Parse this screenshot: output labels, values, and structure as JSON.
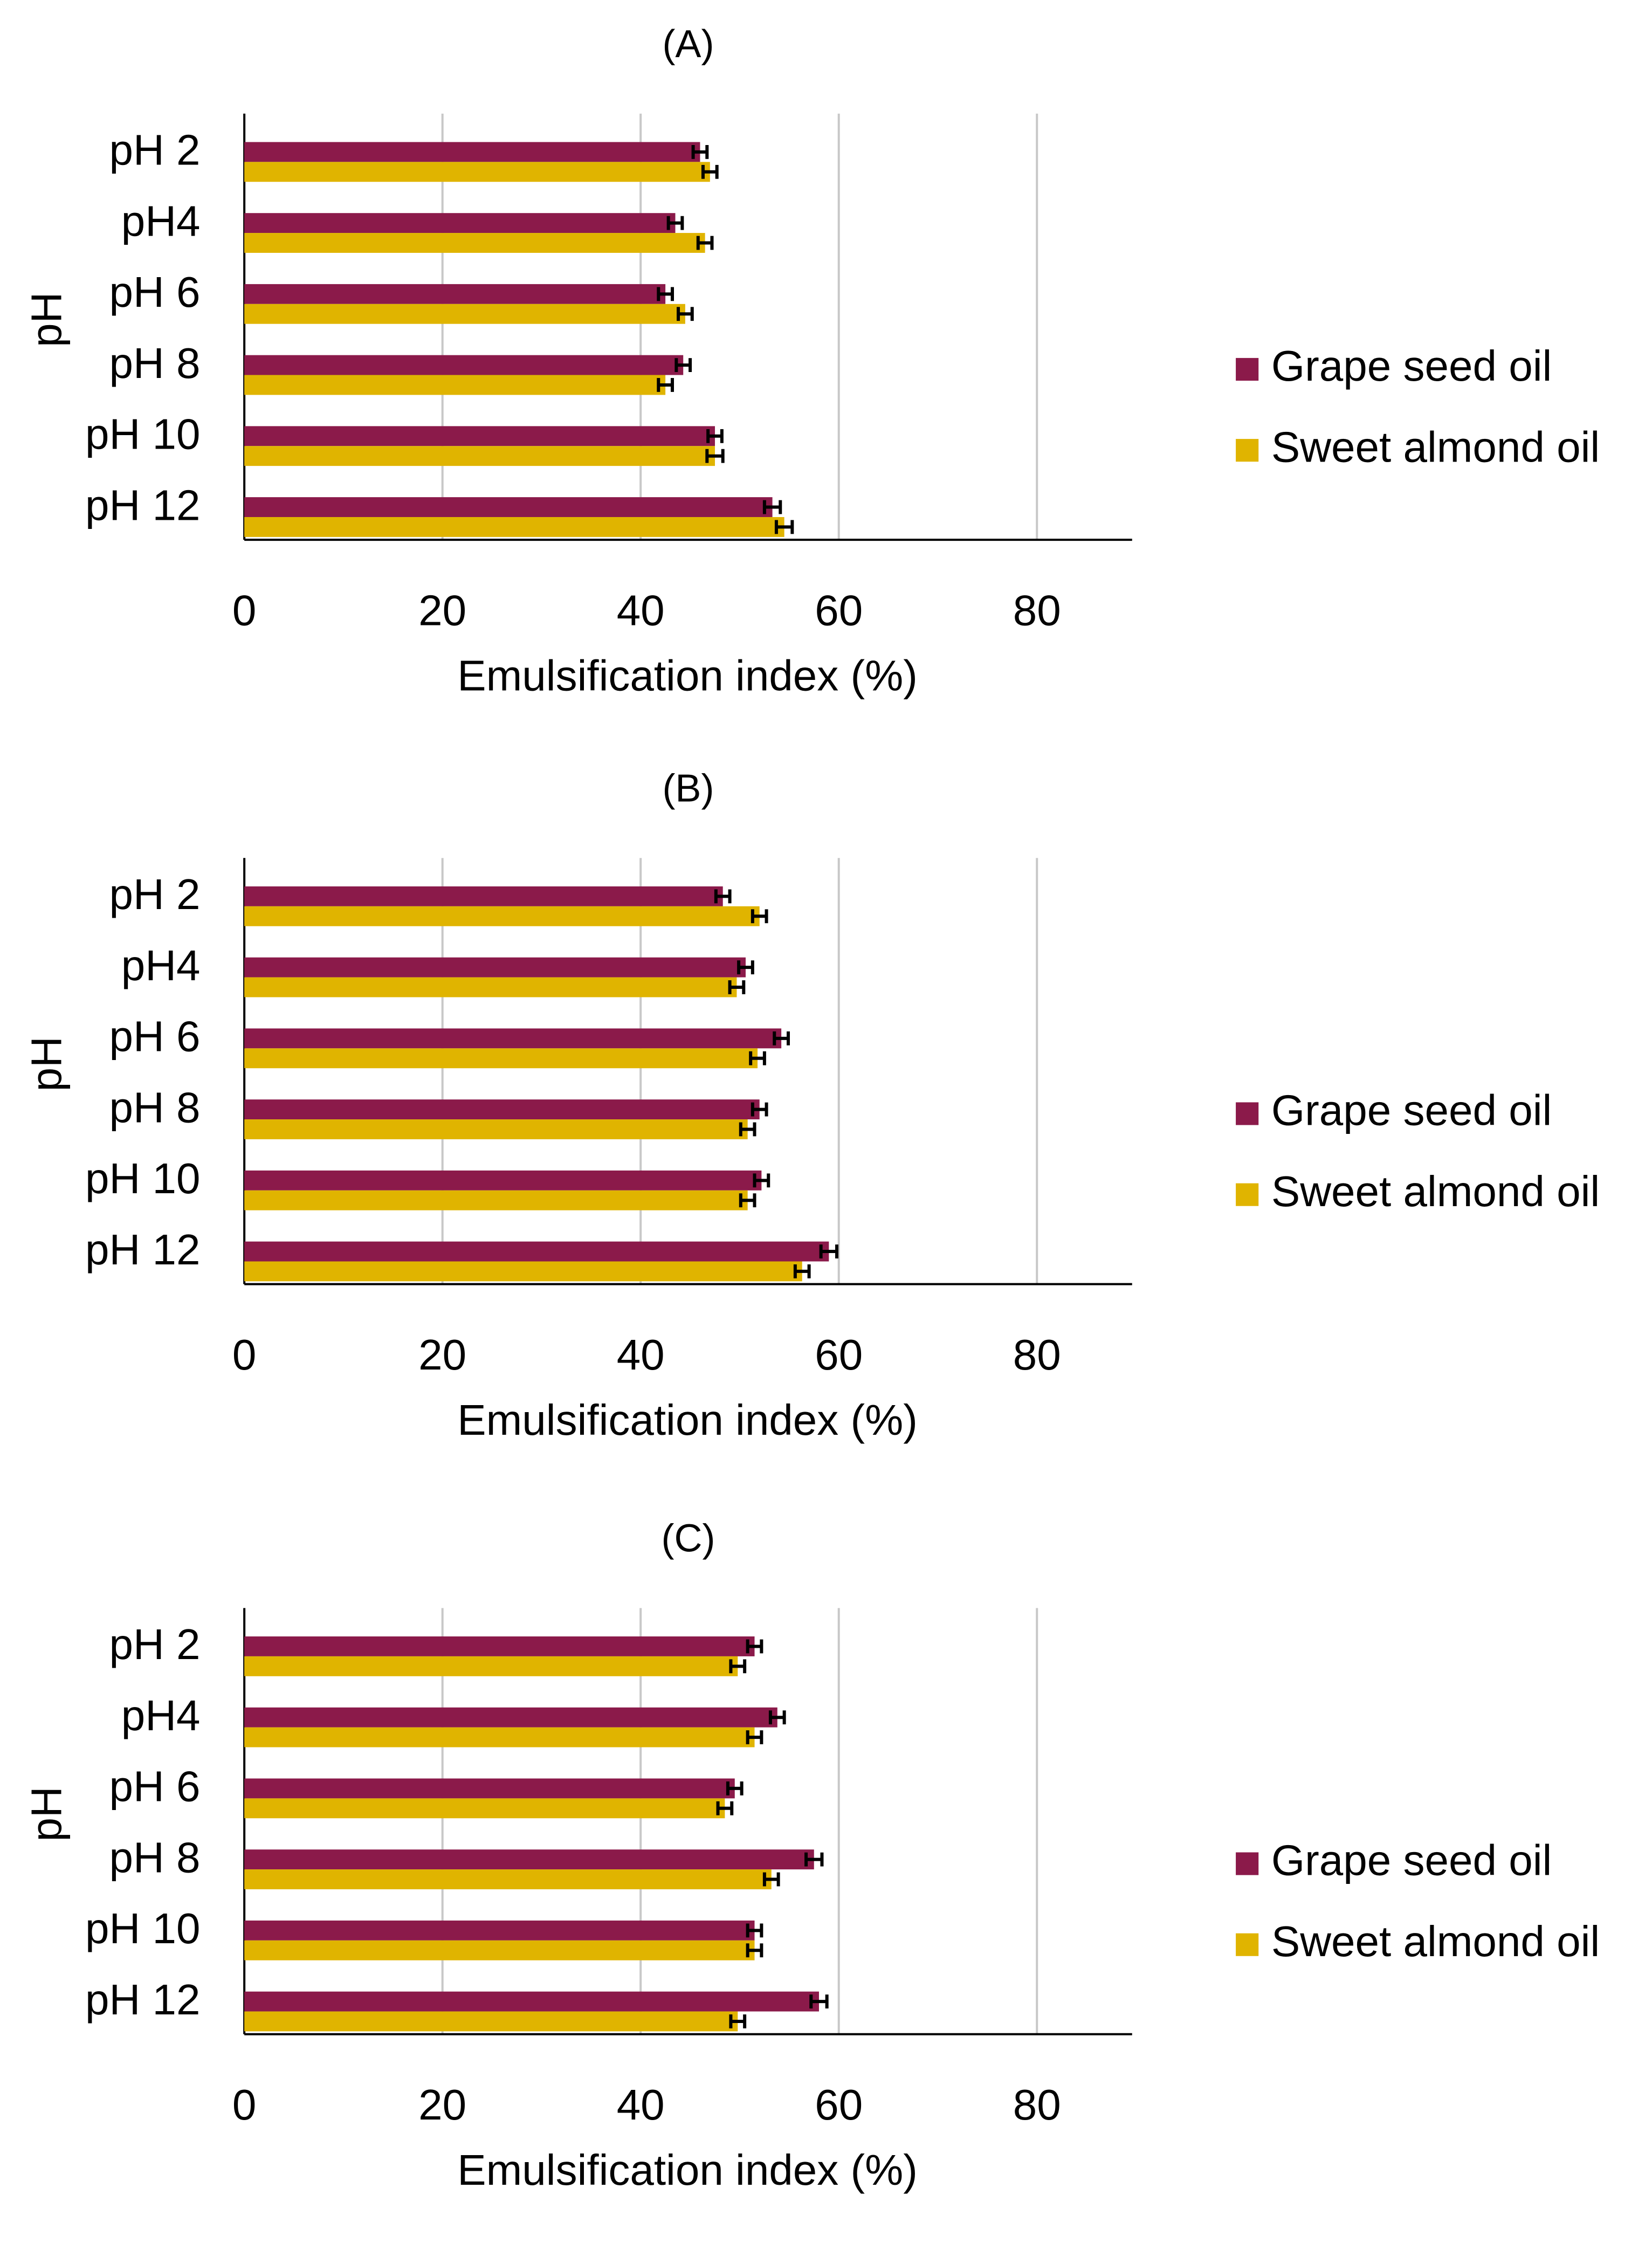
{
  "chart_data": [
    {
      "type": "bar",
      "orientation": "horizontal",
      "panel_label": "(A)",
      "title": "(A)",
      "xlabel": "Emulsification index (%)",
      "ylabel": "pH",
      "categories": [
        "pH 2",
        "pH4",
        "pH 6",
        "pH 8",
        "pH 10",
        "pH 12"
      ],
      "xlim": [
        0,
        90
      ],
      "xticks": [
        0,
        20,
        40,
        60,
        80
      ],
      "grid": true,
      "legend_position": "right",
      "series": [
        {
          "name": "Grape seed oil",
          "color": "#8B1A4A",
          "values": [
            46,
            43.5,
            42.5,
            44.3,
            47.5,
            53.3
          ],
          "errors": [
            0.7,
            0.7,
            0.7,
            0.7,
            0.7,
            0.8
          ]
        },
        {
          "name": "Sweet almond oil",
          "color": "#E0B400",
          "values": [
            47,
            46.5,
            44.5,
            42.5,
            47.5,
            54.5
          ],
          "errors": [
            0.7,
            0.7,
            0.7,
            0.7,
            0.8,
            0.8
          ]
        }
      ]
    },
    {
      "type": "bar",
      "orientation": "horizontal",
      "panel_label": "(B)",
      "title": "(B)",
      "xlabel": "Emulsification index (%)",
      "ylabel": "pH",
      "categories": [
        "pH 2",
        "pH4",
        "pH 6",
        "pH 8",
        "pH 10",
        "pH 12"
      ],
      "xlim": [
        0,
        90
      ],
      "xticks": [
        0,
        20,
        40,
        60,
        80
      ],
      "grid": true,
      "legend_position": "right",
      "series": [
        {
          "name": "Grape seed oil",
          "color": "#8B1A4A",
          "values": [
            48.3,
            50.6,
            54.2,
            52,
            52.2,
            59
          ],
          "errors": [
            0.7,
            0.7,
            0.7,
            0.7,
            0.7,
            0.8
          ]
        },
        {
          "name": "Sweet almond oil",
          "color": "#E0B400",
          "values": [
            52,
            49.7,
            51.8,
            50.8,
            50.8,
            56.3
          ],
          "errors": [
            0.7,
            0.7,
            0.7,
            0.7,
            0.7,
            0.7
          ]
        }
      ]
    },
    {
      "type": "bar",
      "orientation": "horizontal",
      "panel_label": "(C)",
      "title": "(C)",
      "xlabel": "Emulsification index (%)",
      "ylabel": "pH",
      "categories": [
        "pH 2",
        "pH4",
        "pH 6",
        "pH 8",
        "pH 10",
        "pH 12"
      ],
      "xlim": [
        0,
        90
      ],
      "xticks": [
        0,
        20,
        40,
        60,
        80
      ],
      "grid": true,
      "legend_position": "right",
      "series": [
        {
          "name": "Grape seed oil",
          "color": "#8B1A4A",
          "values": [
            51.5,
            53.8,
            49.5,
            57.5,
            51.5,
            58
          ],
          "errors": [
            0.7,
            0.7,
            0.7,
            0.8,
            0.7,
            0.8
          ]
        },
        {
          "name": "Sweet almond oil",
          "color": "#E0B400",
          "values": [
            49.8,
            51.5,
            48.5,
            53.2,
            51.5,
            49.8
          ],
          "errors": [
            0.7,
            0.7,
            0.7,
            0.7,
            0.7,
            0.7
          ]
        }
      ]
    }
  ]
}
